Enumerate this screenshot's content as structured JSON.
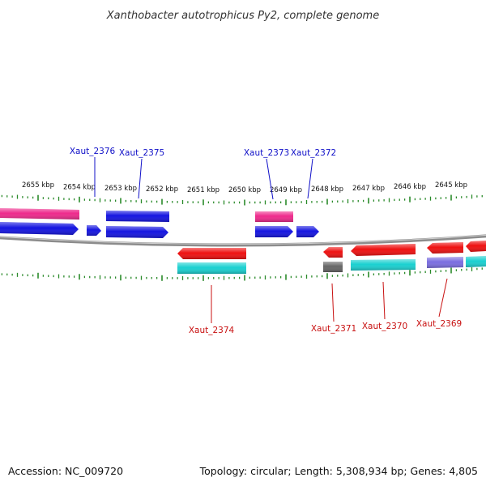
{
  "title": "Xanthobacter autotrophicus Py2, complete genome",
  "footer": {
    "accession": "Accession: NC_009720",
    "summary": "Topology: circular; Length: 5,308,934 bp; Genes: 4,805"
  },
  "scale_labels": [
    "2655 kbp",
    "2654 kbp",
    "2653 kbp",
    "2652 kbp",
    "2651 kbp",
    "2650 kbp",
    "2649 kbp",
    "2648 kbp",
    "2647 kbp",
    "2646 kbp",
    "2645 kbp"
  ],
  "gene_labels": {
    "forward": [
      "Xaut_2376",
      "Xaut_2375",
      "Xaut_2373",
      "Xaut_2372"
    ],
    "reverse": [
      "Xaut_2374",
      "Xaut_2371",
      "Xaut_2370",
      "Xaut_2369"
    ]
  },
  "colors": {
    "forward_label": "#1010c8",
    "reverse_label": "#c81010",
    "forward_cds": "#1515e0",
    "forward_feature": "#ee2a8c",
    "reverse_cds": "#ee1111",
    "reverse_feature_rna": "#1ad0d0",
    "reverse_feature_misc": "#7b6ee0",
    "reverse_feature_pseudo": "#666666",
    "ruler_tick": "#2a8a2a",
    "backbone": "#8c8c8c"
  }
}
